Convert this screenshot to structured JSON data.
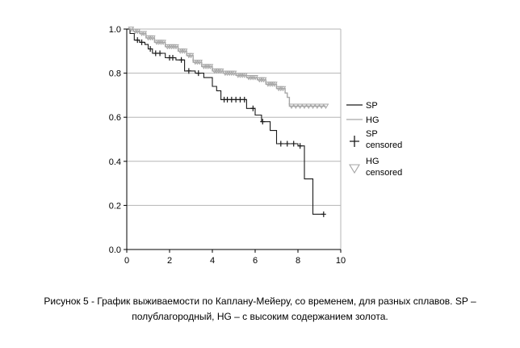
{
  "caption": {
    "line1": "Рисунок 5 - График выживаемости по Каплану-Мейеру, со временем, для разных сплавов. SP –",
    "line2": "полублагородный, HG – с высоким содержанием золота."
  },
  "chart_data": {
    "type": "line",
    "step": true,
    "title": "",
    "xlabel": "",
    "ylabel": "",
    "xlim": [
      0,
      10
    ],
    "ylim": [
      0,
      1
    ],
    "xticks": [
      0,
      2,
      4,
      6,
      8,
      10
    ],
    "yticks": [
      0.0,
      0.2,
      0.4,
      0.6,
      0.8,
      1.0
    ],
    "grid": "horizontal",
    "legend_position": "right",
    "legend": [
      {
        "key": "SP",
        "label": "SP",
        "marker": "line"
      },
      {
        "key": "HG",
        "label": "HG",
        "marker": "line"
      },
      {
        "key": "SP_c",
        "label": "SP",
        "label2": "censored",
        "marker": "plus"
      },
      {
        "key": "HG_c",
        "label": "HG",
        "label2": "censored",
        "marker": "triangle"
      }
    ],
    "colors": {
      "SP": "#1a1a1a",
      "HG": "#a6a6a6"
    },
    "series": [
      {
        "key": "SP",
        "steps": [
          [
            0,
            1.0
          ],
          [
            0.15,
            0.98
          ],
          [
            0.35,
            0.95
          ],
          [
            0.6,
            0.94
          ],
          [
            0.85,
            0.93
          ],
          [
            1.0,
            0.91
          ],
          [
            1.2,
            0.89
          ],
          [
            1.8,
            0.87
          ],
          [
            2.3,
            0.86
          ],
          [
            2.7,
            0.81
          ],
          [
            3.2,
            0.8
          ],
          [
            3.6,
            0.78
          ],
          [
            4.0,
            0.74
          ],
          [
            4.2,
            0.72
          ],
          [
            4.4,
            0.68
          ],
          [
            5.6,
            0.64
          ],
          [
            6.0,
            0.61
          ],
          [
            6.3,
            0.58
          ],
          [
            6.7,
            0.54
          ],
          [
            7.0,
            0.48
          ],
          [
            8.0,
            0.47
          ],
          [
            8.3,
            0.32
          ],
          [
            8.7,
            0.16
          ],
          [
            9.2,
            0.16
          ]
        ],
        "censored_x": [
          0.5,
          0.7,
          1.1,
          1.35,
          1.55,
          2.0,
          2.15,
          2.55,
          2.9,
          3.35,
          4.55,
          4.7,
          4.9,
          5.1,
          5.3,
          5.5,
          5.9,
          6.35,
          7.2,
          7.5,
          7.8,
          8.1,
          9.2
        ]
      },
      {
        "key": "HG",
        "steps": [
          [
            0,
            1.0
          ],
          [
            0.3,
            0.99
          ],
          [
            0.6,
            0.98
          ],
          [
            0.9,
            0.96
          ],
          [
            1.3,
            0.94
          ],
          [
            1.8,
            0.92
          ],
          [
            2.4,
            0.9
          ],
          [
            2.8,
            0.88
          ],
          [
            3.1,
            0.85
          ],
          [
            3.5,
            0.83
          ],
          [
            4.0,
            0.81
          ],
          [
            4.5,
            0.8
          ],
          [
            5.1,
            0.79
          ],
          [
            5.6,
            0.78
          ],
          [
            6.1,
            0.77
          ],
          [
            6.5,
            0.75
          ],
          [
            7.0,
            0.73
          ],
          [
            7.4,
            0.71
          ],
          [
            7.5,
            0.69
          ],
          [
            7.6,
            0.65
          ],
          [
            9.3,
            0.65
          ]
        ],
        "censored_x": [
          0.2,
          0.4,
          0.5,
          0.7,
          0.8,
          1.0,
          1.1,
          1.2,
          1.4,
          1.5,
          1.6,
          1.7,
          1.9,
          2.0,
          2.1,
          2.2,
          2.3,
          2.5,
          2.6,
          2.7,
          2.9,
          3.0,
          3.2,
          3.3,
          3.4,
          3.6,
          3.7,
          3.8,
          3.9,
          4.1,
          4.2,
          4.3,
          4.4,
          4.6,
          4.7,
          4.8,
          4.9,
          5.0,
          5.2,
          5.3,
          5.4,
          5.5,
          5.7,
          5.8,
          5.9,
          6.0,
          6.2,
          6.3,
          6.4,
          6.6,
          6.7,
          6.8,
          6.9,
          7.1,
          7.2,
          7.3,
          7.7,
          7.9,
          8.1,
          8.3,
          8.5,
          8.7,
          8.9,
          9.1,
          9.3
        ]
      }
    ]
  }
}
